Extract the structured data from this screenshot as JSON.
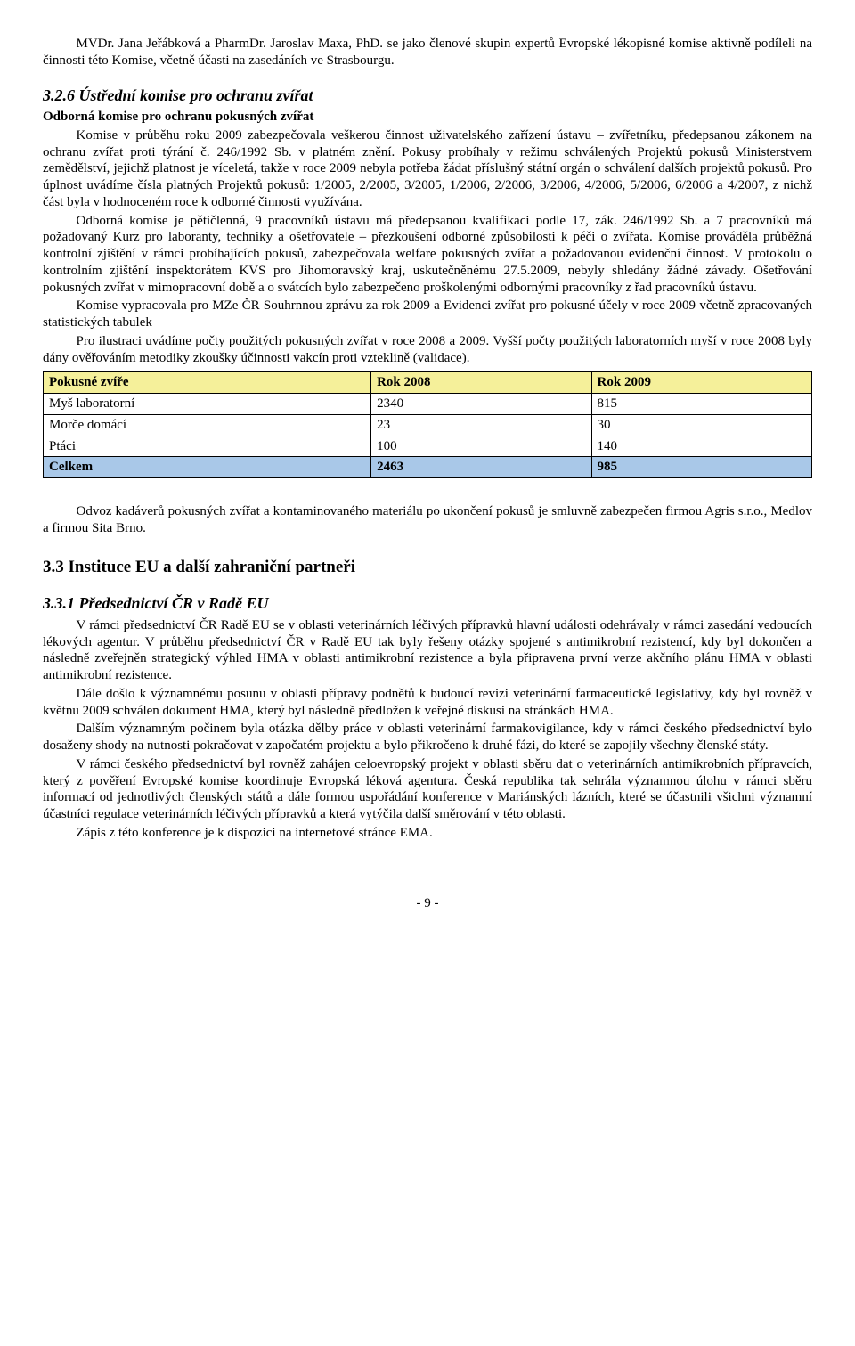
{
  "para_intro_1": "MVDr. Jana Jeřábková a PharmDr. Jaroslav Maxa, PhD. se jako členové skupin expertů Evropské lékopisné komise aktivně podíleli na činnosti této Komise, včetně účasti na zasedáních ve Strasbourgu.",
  "section_326_title": "3.2.6   Ústřední komise pro ochranu zvířat",
  "section_326_sub": "Odborná komise pro ochranu pokusných zvířat",
  "para_326_1": "Komise v průběhu roku 2009 zabezpečovala veškerou činnost uživatelského zařízení ústavu – zvířetníku, předepsanou zákonem na ochranu zvířat proti týrání č. 246/1992 Sb. v platném znění. Pokusy probíhaly v režimu schválených Projektů pokusů Ministerstvem zemědělství, jejichž platnost je víceletá, takže v roce 2009 nebyla potřeba žádat příslušný státní orgán o schválení dalších projektů pokusů. Pro úplnost uvádíme čísla platných Projektů pokusů: 1/2005, 2/2005, 3/2005, 1/2006, 2/2006, 3/2006, 4/2006, 5/2006, 6/2006 a 4/2007, z nichž část byla v hodnoceném roce k odborné činnosti využívána.",
  "para_326_2": "Odborná komise je pětičlenná, 9 pracovníků ústavu má předepsanou kvalifikaci podle 17, zák. 246/1992 Sb. a 7 pracovníků má požadovaný Kurz pro laboranty, techniky a ošetřovatele – přezkoušení odborné způsobilosti k péči o zvířata. Komise prováděla průběžná kontrolní zjištění v rámci probíhajících pokusů, zabezpečovala welfare pokusných zvířat a požadovanou evidenční činnost. V protokolu o kontrolním zjištění inspektorátem KVS pro Jihomoravský kraj, uskutečněnému 27.5.2009, nebyly shledány žádné závady. Ošetřování pokusných zvířat v mimopracovní době a o svátcích bylo zabezpečeno proškolenými odbornými pracovníky z řad pracovníků ústavu.",
  "para_326_3": "Komise vypracovala pro MZe ČR Souhrnnou zprávu za rok 2009 a Evidenci zvířat pro pokusné účely v roce 2009 včetně zpracovaných statistických tabulek",
  "para_326_4": "Pro ilustraci uvádíme počty použitých pokusných zvířat v roce 2008 a 2009. Vyšší počty použitých laboratorních myší v roce 2008 byly dány ověřováním metodiky zkoušky účinnosti vakcín proti vzteklině (validace).",
  "table": {
    "header_bg": "#f5f09a",
    "total_bg": "#a9c8e8",
    "columns": [
      "Pokusné zvíře",
      "Rok 2008",
      "Rok 2009"
    ],
    "rows": [
      [
        "Myš laboratorní",
        "2340",
        "815"
      ],
      [
        "Morče domácí",
        "23",
        "30"
      ],
      [
        "Ptáci",
        "100",
        "140"
      ]
    ],
    "total": [
      "Celkem",
      "2463",
      "985"
    ]
  },
  "para_326_5": "Odvoz kadáverů pokusných zvířat a kontaminovaného materiálu po ukončení pokusů je smluvně zabezpečen firmou Agris s.r.o., Medlov a firmou Sita Brno.",
  "section_33_title": "3.3    Instituce EU a další zahraniční partneři",
  "section_331_title": "3.3.1  Předsednictví ČR v Radě EU",
  "para_331_1": "V rámci předsednictví ČR  Radě EU se v oblasti veterinárních léčivých přípravků hlavní události odehrávaly v rámci zasedání vedoucích lékových agentur. V průběhu předsednictví ČR v Radě EU tak byly řešeny otázky spojené s antimikrobní rezistencí, kdy byl dokončen a následně zveřejněn strategický výhled HMA v oblasti antimikrobní rezistence a byla připravena první verze akčního plánu HMA v oblasti antimikrobní rezistence.",
  "para_331_2": "Dále došlo k významnému posunu v oblasti přípravy podnětů k budoucí revizi veterinární farmaceutické legislativy, kdy byl rovněž v květnu 2009 schválen dokument HMA, který byl následně předložen k veřejné diskusi na stránkách HMA.",
  "para_331_3": "Dalším významným počinem byla otázka dělby práce v oblasti veterinární farmakovigilance, kdy v rámci českého předsednictví bylo dosaženy shody na nutnosti pokračovat v započatém projektu a bylo přikročeno k druhé fázi, do které se zapojily všechny členské státy.",
  "para_331_4": "V rámci českého předsednictví byl rovněž zahájen celoevropský projekt v oblasti sběru dat o veterinárních antimikrobních přípravcích, který z pověření Evropské komise koordinuje Evropská léková agentura. Česká republika tak sehrála významnou úlohu v rámci sběru informací od jednotlivých členských států a dále formou uspořádání konference v Mariánských lázních, které se účastnili všichni významní účastníci regulace veterinárních léčivých přípravků a která vytýčila další směrování v této oblasti.",
  "para_331_5": "Zápis z této konference je k dispozici na internetové stránce EMA.",
  "page_number": "- 9 -"
}
